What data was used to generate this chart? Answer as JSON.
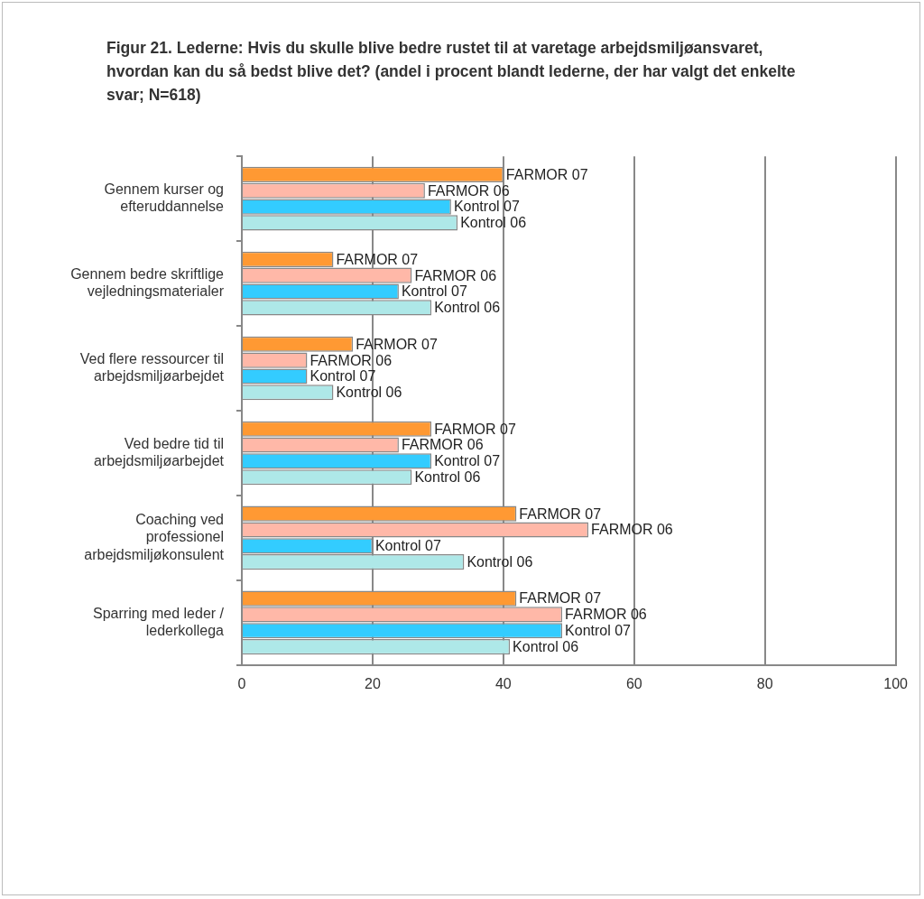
{
  "chart_data": {
    "type": "bar",
    "orientation": "horizontal",
    "title": "Figur 21. Lederne: Hvis du skulle blive bedre rustet til at varetage arbejdsmiljøansvaret, hvordan kan du så bedst blive det? (andel i procent blandt lederne, der har valgt det enkelte svar; N=618)",
    "categories": [
      "Gennem kurser og efteruddannelse",
      "Gennem bedre skriftlige vejledningsmaterialer",
      "Ved flere ressourcer til arbejdsmiljøarbejdet",
      "Ved bedre tid til arbejdsmiljøarbejdet",
      "Coaching ved professionel arbejdsmiljøkonsulent",
      "Sparring med leder / lederkollega"
    ],
    "series": [
      {
        "name": "FARMOR 07",
        "color": "#ff9933",
        "values": [
          40,
          14,
          17,
          29,
          42,
          42
        ]
      },
      {
        "name": "FARMOR 06",
        "color": "#ffb8a8",
        "values": [
          28,
          26,
          10,
          24,
          53,
          49
        ]
      },
      {
        "name": "Kontrol 07",
        "color": "#33ccff",
        "values": [
          32,
          24,
          10,
          29,
          20,
          49
        ]
      },
      {
        "name": "Kontrol 06",
        "color": "#aee8e8",
        "values": [
          33,
          29,
          14,
          26,
          34,
          41
        ]
      }
    ],
    "xlim": [
      0,
      100
    ],
    "xticks": [
      0,
      20,
      40,
      60,
      80,
      100
    ],
    "grid": "x",
    "legend": false
  }
}
